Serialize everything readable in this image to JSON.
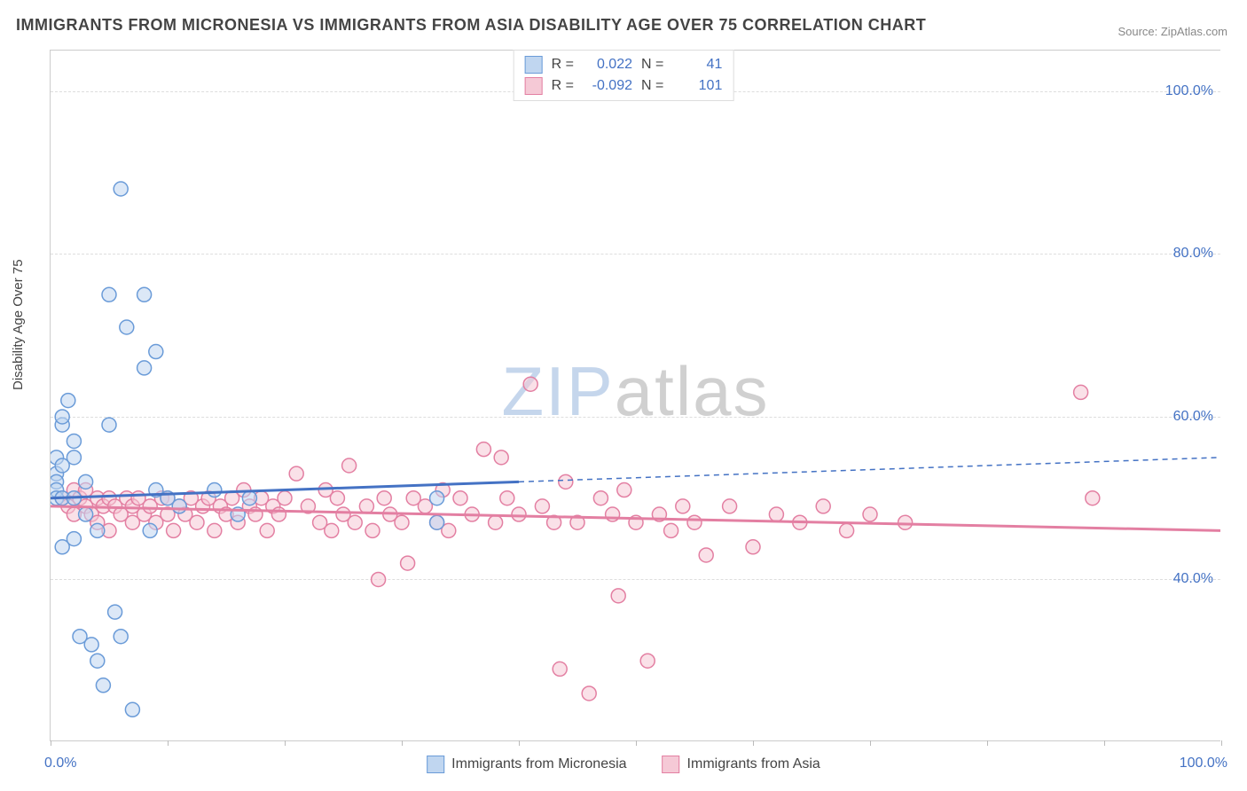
{
  "title": "IMMIGRANTS FROM MICRONESIA VS IMMIGRANTS FROM ASIA DISABILITY AGE OVER 75 CORRELATION CHART",
  "source": "Source: ZipAtlas.com",
  "ylabel": "Disability Age Over 75",
  "watermark": {
    "a": "ZIP",
    "b": "atlas"
  },
  "chart": {
    "type": "scatter",
    "xlim": [
      0,
      100
    ],
    "ylim": [
      20,
      105
    ],
    "ytick_labels": [
      "40.0%",
      "60.0%",
      "80.0%",
      "100.0%"
    ],
    "ytick_values": [
      40,
      60,
      80,
      100
    ],
    "xtick_major_step": 10,
    "x_origin_label": "0.0%",
    "x_max_label": "100.0%",
    "background_color": "#ffffff",
    "grid_color": "#dddddd",
    "point_radius": 8,
    "point_opacity": 0.55,
    "series": {
      "micronesia": {
        "label": "Immigrants from Micronesia",
        "fill": "#c0d6f0",
        "stroke": "#6a9bd8",
        "R": "0.022",
        "N": "41",
        "regression": {
          "x1": 0,
          "y1": 50,
          "x2": 40,
          "y2": 52,
          "x3": 100,
          "y3": 55
        },
        "points": [
          [
            0.5,
            55
          ],
          [
            0.5,
            53
          ],
          [
            0.5,
            52
          ],
          [
            0.5,
            51
          ],
          [
            0.5,
            50
          ],
          [
            1,
            59
          ],
          [
            1,
            60
          ],
          [
            1,
            54
          ],
          [
            1,
            50
          ],
          [
            1,
            44
          ],
          [
            1.5,
            62
          ],
          [
            2,
            57
          ],
          [
            2,
            55
          ],
          [
            2,
            50
          ],
          [
            2,
            45
          ],
          [
            2.5,
            33
          ],
          [
            3,
            48
          ],
          [
            3,
            52
          ],
          [
            3.5,
            32
          ],
          [
            4,
            30
          ],
          [
            4,
            46
          ],
          [
            4.5,
            27
          ],
          [
            5,
            75
          ],
          [
            5,
            59
          ],
          [
            5.5,
            36
          ],
          [
            6,
            88
          ],
          [
            6,
            33
          ],
          [
            6.5,
            71
          ],
          [
            7,
            24
          ],
          [
            8,
            66
          ],
          [
            8,
            75
          ],
          [
            8.5,
            46
          ],
          [
            9,
            68
          ],
          [
            9,
            51
          ],
          [
            10,
            50
          ],
          [
            11,
            49
          ],
          [
            14,
            51
          ],
          [
            16,
            48
          ],
          [
            17,
            50
          ],
          [
            33,
            47
          ],
          [
            33,
            50
          ]
        ]
      },
      "asia": {
        "label": "Immigrants from Asia",
        "fill": "#f5c9d6",
        "stroke": "#e37fa2",
        "R": "-0.092",
        "N": "101",
        "regression": {
          "x1": 0,
          "y1": 49,
          "x2": 100,
          "y2": 46
        },
        "points": [
          [
            1,
            50
          ],
          [
            1.5,
            49
          ],
          [
            2,
            51
          ],
          [
            2,
            48
          ],
          [
            2.5,
            50
          ],
          [
            3,
            49
          ],
          [
            3,
            51
          ],
          [
            3.5,
            48
          ],
          [
            4,
            50
          ],
          [
            4,
            47
          ],
          [
            4.5,
            49
          ],
          [
            5,
            50
          ],
          [
            5,
            46
          ],
          [
            5.5,
            49
          ],
          [
            6,
            48
          ],
          [
            6.5,
            50
          ],
          [
            7,
            49
          ],
          [
            7,
            47
          ],
          [
            7.5,
            50
          ],
          [
            8,
            48
          ],
          [
            8.5,
            49
          ],
          [
            9,
            47
          ],
          [
            9.5,
            50
          ],
          [
            10,
            48
          ],
          [
            10,
            50
          ],
          [
            10.5,
            46
          ],
          [
            11,
            49
          ],
          [
            11.5,
            48
          ],
          [
            12,
            50
          ],
          [
            12.5,
            47
          ],
          [
            13,
            49
          ],
          [
            13.5,
            50
          ],
          [
            14,
            46
          ],
          [
            14.5,
            49
          ],
          [
            15,
            48
          ],
          [
            15.5,
            50
          ],
          [
            16,
            47
          ],
          [
            16.5,
            51
          ],
          [
            17,
            49
          ],
          [
            17.5,
            48
          ],
          [
            18,
            50
          ],
          [
            18.5,
            46
          ],
          [
            19,
            49
          ],
          [
            19.5,
            48
          ],
          [
            20,
            50
          ],
          [
            21,
            53
          ],
          [
            22,
            49
          ],
          [
            23,
            47
          ],
          [
            23.5,
            51
          ],
          [
            24,
            46
          ],
          [
            24.5,
            50
          ],
          [
            25,
            48
          ],
          [
            25.5,
            54
          ],
          [
            26,
            47
          ],
          [
            27,
            49
          ],
          [
            27.5,
            46
          ],
          [
            28,
            40
          ],
          [
            28.5,
            50
          ],
          [
            29,
            48
          ],
          [
            30,
            47
          ],
          [
            30.5,
            42
          ],
          [
            31,
            50
          ],
          [
            32,
            49
          ],
          [
            33,
            47
          ],
          [
            33.5,
            51
          ],
          [
            34,
            46
          ],
          [
            35,
            50
          ],
          [
            36,
            48
          ],
          [
            37,
            56
          ],
          [
            38,
            47
          ],
          [
            38.5,
            55
          ],
          [
            39,
            50
          ],
          [
            40,
            48
          ],
          [
            41,
            64
          ],
          [
            42,
            49
          ],
          [
            43,
            47
          ],
          [
            43.5,
            29
          ],
          [
            44,
            52
          ],
          [
            45,
            47
          ],
          [
            46,
            26
          ],
          [
            47,
            50
          ],
          [
            48,
            48
          ],
          [
            48.5,
            38
          ],
          [
            49,
            51
          ],
          [
            50,
            47
          ],
          [
            51,
            30
          ],
          [
            52,
            48
          ],
          [
            53,
            46
          ],
          [
            54,
            49
          ],
          [
            55,
            47
          ],
          [
            56,
            43
          ],
          [
            58,
            49
          ],
          [
            60,
            44
          ],
          [
            62,
            48
          ],
          [
            64,
            47
          ],
          [
            66,
            49
          ],
          [
            68,
            46
          ],
          [
            70,
            48
          ],
          [
            73,
            47
          ],
          [
            88,
            63
          ],
          [
            89,
            50
          ]
        ]
      }
    }
  },
  "legend_top": {
    "R_label": "R =",
    "N_label": "N ="
  }
}
